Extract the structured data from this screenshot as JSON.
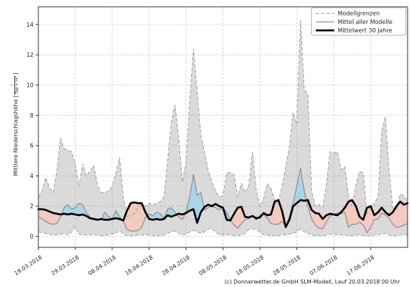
{
  "figure": {
    "footer": "(c) Donnerwetter.de GmbH SLM-Modell, Lauf 20.03.2018 00 Uhr"
  },
  "axes": {
    "y_label": "Mittlere Niederschlagshöhe",
    "bracket_open": "[",
    "bracket_close": "]",
    "unit_numerator": "l",
    "unit_denominator": "Tag × m²"
  },
  "legend": {
    "items": [
      {
        "label": "Modellgrenzen",
        "style": "dashed-gray"
      },
      {
        "label": "Mittel aller Modelle",
        "style": "solid-gray"
      },
      {
        "label": "Mittelwert 30 Jahre",
        "style": "thick-black"
      }
    ]
  },
  "colors": {
    "model_range_fill": "rgba(158,158,158,0.38)",
    "model_range_line": "#9a9a9a",
    "model_mean_line": "#8c8c8c",
    "mean30_line": "#000000",
    "above_fill_blue": "#a8d5ea",
    "below_fill_pink": "#f3cabe",
    "grid": "#c4c4c4",
    "spine": "#2b2b2b",
    "text": "#262626"
  },
  "chart_data": {
    "type": "line",
    "title": "",
    "xlabel": "",
    "ylabel": "Mittlere Niederschlagshöhe [l/(Tag × m²)]",
    "x_unit": "days, daily values from 19.03.2018 to 27.06.2018",
    "ylim": [
      -0.7,
      15.2
    ],
    "grid": true,
    "legend_position": "upper right",
    "y_ticks": [
      0,
      2,
      4,
      6,
      8,
      10,
      12,
      14
    ],
    "x_ticks": {
      "days": [
        0,
        10,
        20,
        30,
        40,
        50,
        60,
        70,
        80,
        90
      ],
      "labels": [
        "19.03.2018",
        "29.03.2018",
        "08.04.2018",
        "18.04.2018",
        "28.04.2018",
        "08.05.2018",
        "18.05.2018",
        "28.05.2018",
        "07.06.2018",
        "17.06.2018"
      ]
    },
    "series": {
      "upper_bound": [
        2.6,
        3.0,
        3.9,
        3.2,
        2.9,
        4.3,
        6.5,
        5.8,
        5.7,
        5.6,
        4.8,
        3.3,
        4.8,
        4.0,
        4.3,
        4.7,
        3.4,
        2.9,
        2.9,
        3.0,
        3.3,
        4.2,
        5.2,
        2.6,
        1.3,
        1.4,
        1.5,
        1.9,
        2.1,
        2.0,
        2.2,
        2.1,
        2.2,
        2.3,
        2.6,
        5.0,
        7.5,
        8.7,
        6.6,
        3.6,
        4.9,
        9.0,
        12.4,
        9.6,
        6.7,
        5.6,
        4.4,
        3.6,
        3.0,
        2.6,
        2.7,
        4.2,
        4.2,
        4.1,
        2.6,
        3.5,
        2.9,
        3.4,
        5.6,
        3.1,
        2.0,
        2.5,
        3.5,
        3.2,
        2.4,
        2.3,
        3.3,
        4.6,
        5.9,
        8.2,
        7.4,
        14.3,
        9.7,
        9.4,
        3.0,
        2.0,
        2.1,
        1.9,
        3.4,
        5.6,
        5.5,
        5.6,
        4.4,
        4.6,
        2.7,
        2.0,
        3.4,
        4.3,
        4.2,
        1.5,
        1.9,
        2.2,
        2.6,
        7.0,
        7.9,
        4.3,
        1.9,
        1.8,
        2.8,
        2.7,
        2.3
      ],
      "lower_bound": [
        0.3,
        0.25,
        0.2,
        0.15,
        0.1,
        0.1,
        0.15,
        0.2,
        0.1,
        0.3,
        0.65,
        0.15,
        0.1,
        0.1,
        0.1,
        0.1,
        0.1,
        0.05,
        0.05,
        0.1,
        0.15,
        0.2,
        0.4,
        0.15,
        0.05,
        0.05,
        0.05,
        0.1,
        0.1,
        0.1,
        0.1,
        0.05,
        0.05,
        0.05,
        0.1,
        0.2,
        0.3,
        0.35,
        0.2,
        0.1,
        0.15,
        0.3,
        0.4,
        0.3,
        0.2,
        0.3,
        0.5,
        0.5,
        0.3,
        0.1,
        0.1,
        0.1,
        0.1,
        0.05,
        0.05,
        0.1,
        0.2,
        0.45,
        0.5,
        0.45,
        0.3,
        0.1,
        0.1,
        0.05,
        0.05,
        0.05,
        0.1,
        0.1,
        0.15,
        0.2,
        0.3,
        0.5,
        0.3,
        0.2,
        0.1,
        0.05,
        0.05,
        0.05,
        0.1,
        0.15,
        0.15,
        0.1,
        0.1,
        0.1,
        0.05,
        0.05,
        0.1,
        0.1,
        0.05,
        0.05,
        0.05,
        0.1,
        0.1,
        0.15,
        0.2,
        0.1,
        0.05,
        0.05,
        0.1,
        0.1,
        0.1
      ],
      "model_mean": [
        1.3,
        1.15,
        1.0,
        0.85,
        0.8,
        0.85,
        1.3,
        1.9,
        2.1,
        1.8,
        1.9,
        2.2,
        2.1,
        1.6,
        1.25,
        1.2,
        1.15,
        1.1,
        1.6,
        1.3,
        1.15,
        1.7,
        1.3,
        1.0,
        0.45,
        0.35,
        0.35,
        0.4,
        0.6,
        1.25,
        1.5,
        1.35,
        1.6,
        1.5,
        1.2,
        1.8,
        1.9,
        1.6,
        1.3,
        1.1,
        1.6,
        2.6,
        4.1,
        2.7,
        2.9,
        1.75,
        1.9,
        2.0,
        1.9,
        1.75,
        1.9,
        1.6,
        1.1,
        0.75,
        0.55,
        0.85,
        1.1,
        1.2,
        1.35,
        1.1,
        1.4,
        1.45,
        1.2,
        0.85,
        0.8,
        0.8,
        1.0,
        0.65,
        1.3,
        2.2,
        3.3,
        4.5,
        3.0,
        1.95,
        1.15,
        0.75,
        0.55,
        0.5,
        0.95,
        1.35,
        1.45,
        1.55,
        1.5,
        1.6,
        0.6,
        0.8,
        0.8,
        0.95,
        0.75,
        0.25,
        0.6,
        1.1,
        1.15,
        1.55,
        1.4,
        1.2,
        0.8,
        0.6,
        0.65,
        0.75,
        0.85
      ],
      "mean_30y": [
        1.8,
        1.8,
        1.75,
        1.65,
        1.55,
        1.5,
        1.45,
        1.5,
        1.45,
        1.5,
        1.45,
        1.4,
        1.45,
        1.35,
        1.2,
        1.15,
        1.1,
        1.15,
        1.1,
        1.1,
        1.15,
        1.2,
        1.15,
        1.05,
        1.7,
        2.2,
        2.25,
        2.2,
        2.2,
        1.6,
        1.15,
        1.1,
        1.15,
        1.1,
        1.15,
        1.4,
        1.3,
        1.4,
        1.5,
        1.45,
        1.55,
        1.7,
        1.8,
        0.9,
        1.6,
        1.95,
        2.1,
        2.0,
        2.15,
        2.0,
        1.9,
        1.1,
        1.05,
        1.5,
        1.9,
        1.95,
        1.3,
        1.25,
        1.35,
        1.2,
        1.25,
        1.55,
        1.4,
        1.45,
        2.3,
        2.4,
        1.7,
        0.62,
        1.1,
        2.0,
        2.2,
        2.4,
        2.35,
        2.4,
        1.75,
        1.55,
        1.5,
        1.15,
        1.4,
        1.5,
        1.45,
        1.4,
        1.6,
        1.9,
        2.3,
        2.4,
        2.0,
        1.3,
        1.1,
        1.9,
        2.0,
        1.4,
        1.6,
        1.9,
        1.6,
        1.4,
        1.6,
        2.0,
        2.3,
        2.1,
        2.2
      ]
    },
    "series_legend": {
      "upper_bound": "Modellgrenzen",
      "lower_bound": "Modellgrenzen",
      "model_mean": "Mittel aller Modelle",
      "mean_30y": "Mittelwert 30 Jahre"
    }
  }
}
